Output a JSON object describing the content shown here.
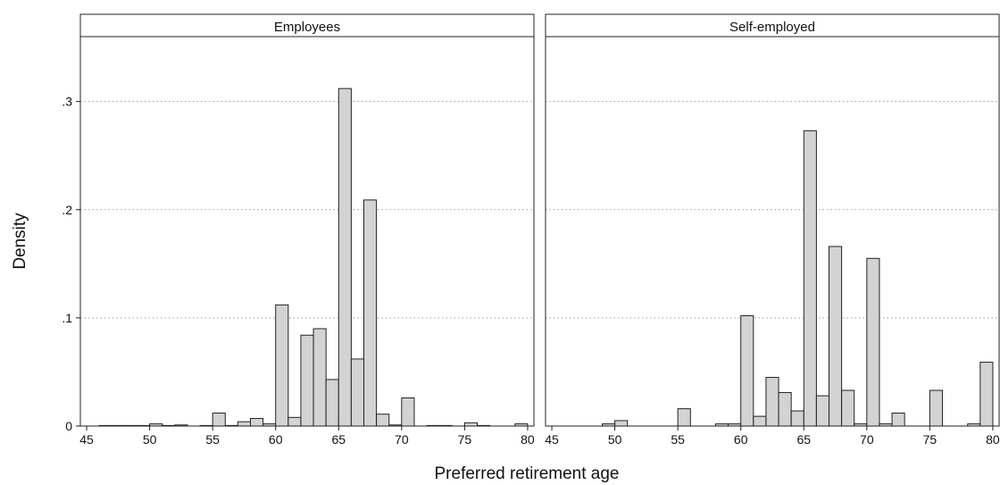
{
  "chart_data": {
    "type": "bar",
    "subtype": "histogram",
    "xlabel": "Preferred retirement age",
    "ylabel": "Density",
    "xlim": [
      44.5,
      80.5
    ],
    "ylim": [
      0,
      0.36
    ],
    "xticks": [
      45,
      50,
      55,
      60,
      65,
      70,
      75,
      80
    ],
    "yticks": [
      0,
      0.1,
      0.2,
      0.3
    ],
    "ytick_labels": [
      "0",
      ".1",
      ".2",
      ".3"
    ],
    "bin_width": 1,
    "grid": "horizontal-dotted",
    "bar_color": "#d3d3d3",
    "bar_edge_color": "#222222",
    "panels": [
      {
        "title": "Employees",
        "bins": [
          {
            "x": 46,
            "value": 0.0005
          },
          {
            "x": 47,
            "value": 0.0005
          },
          {
            "x": 48,
            "value": 0.0005
          },
          {
            "x": 49,
            "value": 0.0005
          },
          {
            "x": 50,
            "value": 0.002
          },
          {
            "x": 51,
            "value": 0.0005
          },
          {
            "x": 52,
            "value": 0.001
          },
          {
            "x": 54,
            "value": 0.0005
          },
          {
            "x": 55,
            "value": 0.012
          },
          {
            "x": 56,
            "value": 0.0005
          },
          {
            "x": 57,
            "value": 0.004
          },
          {
            "x": 58,
            "value": 0.007
          },
          {
            "x": 59,
            "value": 0.002
          },
          {
            "x": 60,
            "value": 0.112
          },
          {
            "x": 61,
            "value": 0.008
          },
          {
            "x": 62,
            "value": 0.084
          },
          {
            "x": 63,
            "value": 0.09
          },
          {
            "x": 64,
            "value": 0.043
          },
          {
            "x": 65,
            "value": 0.312
          },
          {
            "x": 66,
            "value": 0.062
          },
          {
            "x": 67,
            "value": 0.209
          },
          {
            "x": 68,
            "value": 0.011
          },
          {
            "x": 69,
            "value": 0.001
          },
          {
            "x": 70,
            "value": 0.026
          },
          {
            "x": 72,
            "value": 0.0005
          },
          {
            "x": 73,
            "value": 0.0005
          },
          {
            "x": 75,
            "value": 0.003
          },
          {
            "x": 76,
            "value": 0.0005
          },
          {
            "x": 79,
            "value": 0.002
          }
        ]
      },
      {
        "title": "Self-employed",
        "bins": [
          {
            "x": 49,
            "value": 0.002
          },
          {
            "x": 50,
            "value": 0.005
          },
          {
            "x": 55,
            "value": 0.016
          },
          {
            "x": 58,
            "value": 0.002
          },
          {
            "x": 59,
            "value": 0.002
          },
          {
            "x": 60,
            "value": 0.102
          },
          {
            "x": 61,
            "value": 0.009
          },
          {
            "x": 62,
            "value": 0.045
          },
          {
            "x": 63,
            "value": 0.031
          },
          {
            "x": 64,
            "value": 0.014
          },
          {
            "x": 65,
            "value": 0.273
          },
          {
            "x": 66,
            "value": 0.028
          },
          {
            "x": 67,
            "value": 0.166
          },
          {
            "x": 68,
            "value": 0.033
          },
          {
            "x": 69,
            "value": 0.002
          },
          {
            "x": 70,
            "value": 0.155
          },
          {
            "x": 71,
            "value": 0.002
          },
          {
            "x": 72,
            "value": 0.012
          },
          {
            "x": 75,
            "value": 0.033
          },
          {
            "x": 78,
            "value": 0.002
          },
          {
            "x": 79,
            "value": 0.059
          }
        ]
      }
    ]
  }
}
